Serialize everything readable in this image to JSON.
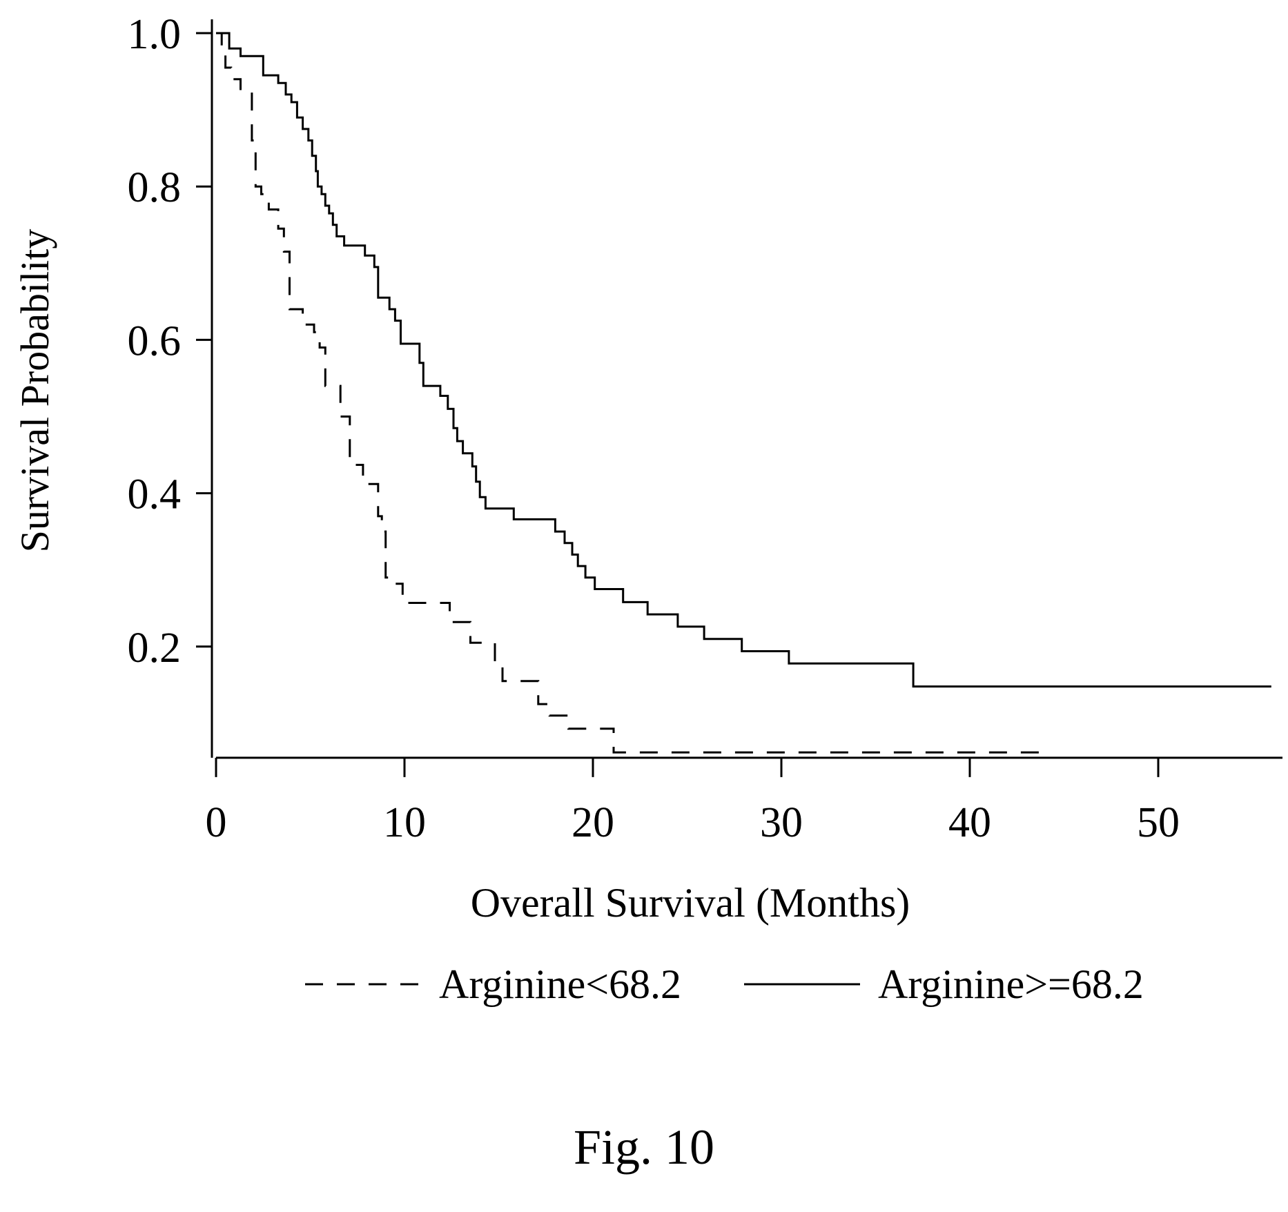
{
  "chart_data": {
    "type": "line",
    "subtype": "kaplan-meier step",
    "title": "",
    "xlabel": "Overall Survival (Months)",
    "ylabel": "Survival Probability",
    "xlim": [
      0,
      56
    ],
    "ylim": [
      0.055,
      1.0
    ],
    "x_ticks": [
      0,
      10,
      20,
      30,
      40,
      50
    ],
    "x_tick_labels": [
      "0",
      "10",
      "20",
      "30",
      "40",
      "50"
    ],
    "y_ticks": [
      0.2,
      0.4,
      0.6,
      0.8,
      1.0
    ],
    "y_tick_labels": [
      "0.2",
      "0.4",
      "0.6",
      "0.8",
      "1.0"
    ],
    "grid": false,
    "legend_position": "bottom",
    "series": [
      {
        "name": "Arginine<68.2",
        "line_style": "dashed",
        "color": "#000000",
        "points": [
          [
            0,
            1.0
          ],
          [
            0.3,
            0.98
          ],
          [
            0.5,
            0.955
          ],
          [
            0.8,
            0.94
          ],
          [
            1.3,
            0.925
          ],
          [
            1.9,
            0.86
          ],
          [
            2.1,
            0.8
          ],
          [
            2.4,
            0.79
          ],
          [
            2.8,
            0.77
          ],
          [
            3.3,
            0.745
          ],
          [
            3.6,
            0.715
          ],
          [
            3.9,
            0.64
          ],
          [
            4.6,
            0.62
          ],
          [
            5.2,
            0.61
          ],
          [
            5.5,
            0.59
          ],
          [
            5.8,
            0.54
          ],
          [
            6.6,
            0.5
          ],
          [
            7.1,
            0.437
          ],
          [
            7.8,
            0.412
          ],
          [
            8.6,
            0.37
          ],
          [
            8.8,
            0.35
          ],
          [
            9.0,
            0.29
          ],
          [
            9.4,
            0.282
          ],
          [
            9.9,
            0.257
          ],
          [
            12.4,
            0.232
          ],
          [
            13.5,
            0.205
          ],
          [
            14.8,
            0.18
          ],
          [
            15.2,
            0.155
          ],
          [
            17.1,
            0.125
          ],
          [
            17.7,
            0.11
          ],
          [
            18.7,
            0.093
          ],
          [
            21.1,
            0.062
          ],
          [
            44,
            0.062
          ]
        ]
      },
      {
        "name": "Arginine>=68.2",
        "line_style": "solid",
        "color": "#000000",
        "points": [
          [
            0,
            1.0
          ],
          [
            0.7,
            0.98
          ],
          [
            1.3,
            0.97
          ],
          [
            2.5,
            0.945
          ],
          [
            3.3,
            0.935
          ],
          [
            3.7,
            0.92
          ],
          [
            4.0,
            0.91
          ],
          [
            4.3,
            0.89
          ],
          [
            4.6,
            0.875
          ],
          [
            4.9,
            0.86
          ],
          [
            5.1,
            0.84
          ],
          [
            5.3,
            0.82
          ],
          [
            5.4,
            0.8
          ],
          [
            5.6,
            0.79
          ],
          [
            5.8,
            0.775
          ],
          [
            6.0,
            0.765
          ],
          [
            6.2,
            0.75
          ],
          [
            6.4,
            0.735
          ],
          [
            6.8,
            0.723
          ],
          [
            7.9,
            0.71
          ],
          [
            8.4,
            0.695
          ],
          [
            8.6,
            0.655
          ],
          [
            9.2,
            0.64
          ],
          [
            9.5,
            0.625
          ],
          [
            9.8,
            0.595
          ],
          [
            10.8,
            0.57
          ],
          [
            11.0,
            0.54
          ],
          [
            11.9,
            0.527
          ],
          [
            12.3,
            0.51
          ],
          [
            12.6,
            0.485
          ],
          [
            12.8,
            0.468
          ],
          [
            13.1,
            0.452
          ],
          [
            13.6,
            0.435
          ],
          [
            13.8,
            0.415
          ],
          [
            14.0,
            0.395
          ],
          [
            14.3,
            0.38
          ],
          [
            15.8,
            0.366
          ],
          [
            18.0,
            0.35
          ],
          [
            18.5,
            0.335
          ],
          [
            18.9,
            0.32
          ],
          [
            19.2,
            0.305
          ],
          [
            19.6,
            0.29
          ],
          [
            20.1,
            0.275
          ],
          [
            21.6,
            0.258
          ],
          [
            22.9,
            0.242
          ],
          [
            24.5,
            0.226
          ],
          [
            25.9,
            0.21
          ],
          [
            27.9,
            0.194
          ],
          [
            30.4,
            0.178
          ],
          [
            37.0,
            0.148
          ],
          [
            56,
            0.148
          ]
        ]
      }
    ],
    "caption": "Fig. 10"
  }
}
